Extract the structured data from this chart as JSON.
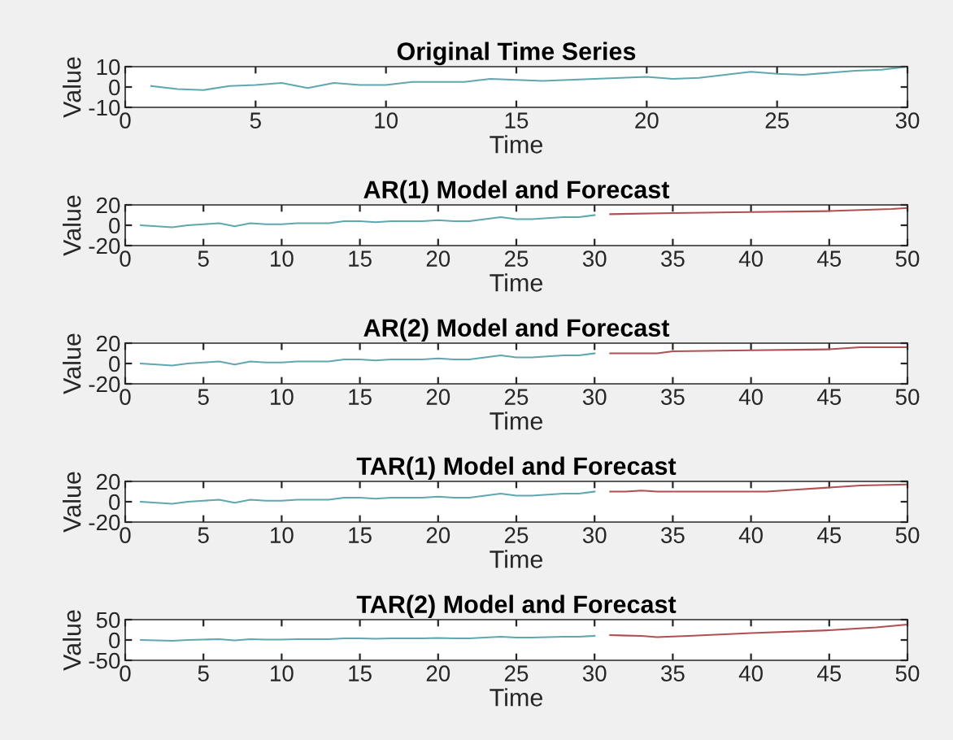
{
  "chart_data": [
    {
      "type": "line",
      "title": "Original Time Series",
      "xlabel": "Time",
      "ylabel": "Value",
      "xlim": [
        0,
        30
      ],
      "xticks": [
        0,
        5,
        10,
        15,
        20,
        25,
        30
      ],
      "ylim": [
        -10,
        10
      ],
      "yticks": [
        -10,
        0,
        10
      ],
      "series": [
        {
          "color": "#5fa8b0",
          "x": [
            1,
            2,
            3,
            4,
            5,
            6,
            7,
            8,
            9,
            10,
            11,
            12,
            13,
            14,
            15,
            16,
            17,
            18,
            19,
            20,
            21,
            22,
            23,
            24,
            25,
            26,
            27,
            28,
            29,
            30
          ],
          "values": [
            0.5,
            -1,
            -1.5,
            0.5,
            1,
            2,
            -0.5,
            2,
            1,
            1,
            2.5,
            2.5,
            2.5,
            4,
            3.5,
            3,
            3.5,
            4,
            4.5,
            5,
            4,
            4.5,
            6,
            7.5,
            6.5,
            6,
            7,
            8,
            8.5,
            10
          ]
        }
      ]
    },
    {
      "type": "line",
      "title": "AR(1) Model and Forecast",
      "xlabel": "Time",
      "ylabel": "Value",
      "xlim": [
        0,
        50
      ],
      "xticks": [
        0,
        5,
        10,
        15,
        20,
        25,
        30,
        35,
        40,
        45,
        50
      ],
      "ylim": [
        -20,
        20
      ],
      "yticks": [
        -20,
        0,
        20
      ],
      "series": [
        {
          "color": "#5fa8b0",
          "x": [
            1,
            2,
            3,
            4,
            5,
            6,
            7,
            8,
            9,
            10,
            11,
            12,
            13,
            14,
            15,
            16,
            17,
            18,
            19,
            20,
            21,
            22,
            23,
            24,
            25,
            26,
            27,
            28,
            29,
            30
          ],
          "values": [
            0,
            -1,
            -2,
            0,
            1,
            2,
            -1,
            2,
            1,
            1,
            2,
            2,
            2,
            4,
            4,
            3,
            4,
            4,
            4,
            5,
            4,
            4,
            6,
            8,
            6,
            6,
            7,
            8,
            8,
            10
          ]
        },
        {
          "color": "#b05050",
          "x": [
            31,
            35,
            40,
            45,
            49,
            50
          ],
          "values": [
            11,
            12,
            13,
            14,
            16,
            17
          ]
        }
      ]
    },
    {
      "type": "line",
      "title": "AR(2) Model and Forecast",
      "xlabel": "Time",
      "ylabel": "Value",
      "xlim": [
        0,
        50
      ],
      "xticks": [
        0,
        5,
        10,
        15,
        20,
        25,
        30,
        35,
        40,
        45,
        50
      ],
      "ylim": [
        -20,
        20
      ],
      "yticks": [
        -20,
        0,
        20
      ],
      "series": [
        {
          "color": "#5fa8b0",
          "x": [
            1,
            2,
            3,
            4,
            5,
            6,
            7,
            8,
            9,
            10,
            11,
            12,
            13,
            14,
            15,
            16,
            17,
            18,
            19,
            20,
            21,
            22,
            23,
            24,
            25,
            26,
            27,
            28,
            29,
            30
          ],
          "values": [
            0,
            -1,
            -2,
            0,
            1,
            2,
            -1,
            2,
            1,
            1,
            2,
            2,
            2,
            4,
            4,
            3,
            4,
            4,
            4,
            5,
            4,
            4,
            6,
            8,
            6,
            6,
            7,
            8,
            8,
            10
          ]
        },
        {
          "color": "#b05050",
          "x": [
            31,
            34,
            35,
            40,
            45,
            47,
            50
          ],
          "values": [
            10,
            10,
            12,
            13,
            14,
            16,
            16
          ]
        }
      ]
    },
    {
      "type": "line",
      "title": "TAR(1) Model and Forecast",
      "xlabel": "Time",
      "ylabel": "Value",
      "xlim": [
        0,
        50
      ],
      "xticks": [
        0,
        5,
        10,
        15,
        20,
        25,
        30,
        35,
        40,
        45,
        50
      ],
      "ylim": [
        -20,
        20
      ],
      "yticks": [
        -20,
        0,
        20
      ],
      "series": [
        {
          "color": "#5fa8b0",
          "x": [
            1,
            2,
            3,
            4,
            5,
            6,
            7,
            8,
            9,
            10,
            11,
            12,
            13,
            14,
            15,
            16,
            17,
            18,
            19,
            20,
            21,
            22,
            23,
            24,
            25,
            26,
            27,
            28,
            29,
            30
          ],
          "values": [
            0,
            -1,
            -2,
            0,
            1,
            2,
            -1,
            2,
            1,
            1,
            2,
            2,
            2,
            4,
            4,
            3,
            4,
            4,
            4,
            5,
            4,
            4,
            6,
            8,
            6,
            6,
            7,
            8,
            8,
            10
          ]
        },
        {
          "color": "#b05050",
          "x": [
            31,
            32,
            33,
            34,
            38,
            41,
            43,
            45,
            47,
            50
          ],
          "values": [
            10,
            10,
            11,
            10,
            10,
            10,
            12,
            14,
            16,
            17
          ]
        }
      ]
    },
    {
      "type": "line",
      "title": "TAR(2) Model and Forecast",
      "xlabel": "Time",
      "ylabel": "Value",
      "xlim": [
        0,
        50
      ],
      "xticks": [
        0,
        5,
        10,
        15,
        20,
        25,
        30,
        35,
        40,
        45,
        50
      ],
      "ylim": [
        -50,
        50
      ],
      "yticks": [
        -50,
        0,
        50
      ],
      "series": [
        {
          "color": "#5fa8b0",
          "x": [
            1,
            2,
            3,
            4,
            5,
            6,
            7,
            8,
            9,
            10,
            11,
            12,
            13,
            14,
            15,
            16,
            17,
            18,
            19,
            20,
            21,
            22,
            23,
            24,
            25,
            26,
            27,
            28,
            29,
            30
          ],
          "values": [
            0,
            -1,
            -2,
            0,
            1,
            2,
            -1,
            2,
            1,
            1,
            2,
            2,
            2,
            4,
            4,
            3,
            4,
            4,
            4,
            5,
            4,
            4,
            6,
            8,
            6,
            6,
            7,
            8,
            8,
            10
          ]
        },
        {
          "color": "#b05050",
          "x": [
            31,
            33,
            34,
            36,
            40,
            45,
            48,
            50
          ],
          "values": [
            12,
            10,
            7,
            10,
            17,
            24,
            31,
            38
          ]
        }
      ]
    }
  ]
}
